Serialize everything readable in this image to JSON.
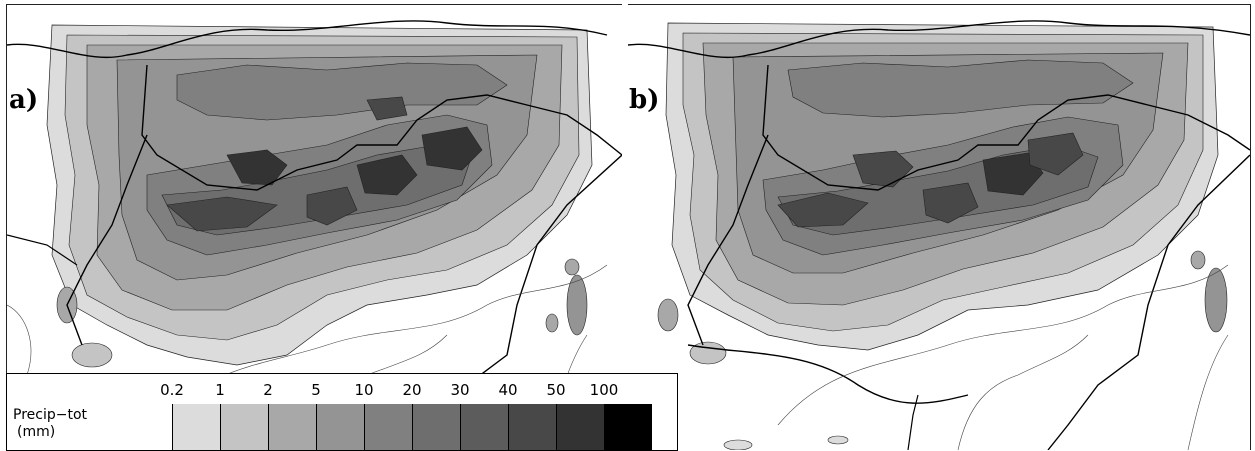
{
  "figure": {
    "panels": [
      {
        "id": "a",
        "label": "a)"
      },
      {
        "id": "b",
        "label": "b)"
      }
    ]
  },
  "legend": {
    "title_line1": "Precip−tot",
    "title_line2": "(mm)",
    "thresholds": [
      "0.2",
      "1",
      "2",
      "5",
      "10",
      "20",
      "30",
      "40",
      "50",
      "100"
    ],
    "colors": [
      "#dcdcdc",
      "#c4c4c4",
      "#a8a8a8",
      "#949494",
      "#808080",
      "#6e6e6e",
      "#5c5c5c",
      "#484848",
      "#333333",
      "#000000"
    ]
  }
}
